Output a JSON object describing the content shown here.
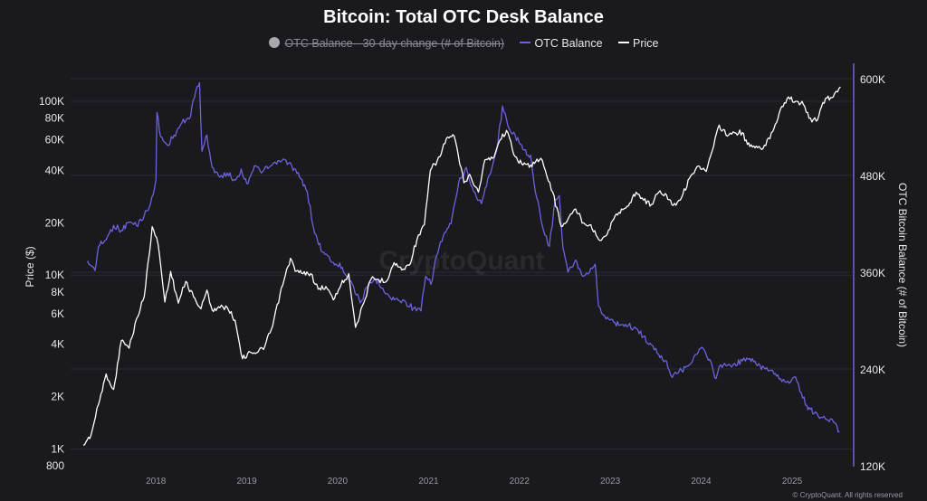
{
  "title": "Bitcoin: Total OTC Desk Balance",
  "legend": {
    "hidden_item": "OTC Balance - 30-day change (# of Bitcoin)",
    "balance_item": "OTC Balance",
    "price_item": "Price"
  },
  "footer": "© CryptoQuant. All rights reserved",
  "watermark": "CryptoQuant",
  "colors": {
    "background": "#1a191e",
    "balance": "#6b63de",
    "price": "#ffffff",
    "grid": "#2b2a31",
    "hidden_dot": "#a9a8b0"
  },
  "chart_data": {
    "type": "line",
    "title": "Bitcoin: Total OTC Desk Balance",
    "x_axis": {
      "type": "time",
      "range": [
        "2017-03-15",
        "2025-07-20"
      ],
      "tick_labels": [
        "2018",
        "2019",
        "2020",
        "2021",
        "2022",
        "2023",
        "2024",
        "2025"
      ]
    },
    "y_left": {
      "label": "Price ($)",
      "scale": "log",
      "range": [
        800,
        135000
      ],
      "tick_labels": [
        "800",
        "1K",
        "2K",
        "4K",
        "6K",
        "8K",
        "10K",
        "20K",
        "40K",
        "60K",
        "80K",
        "100K"
      ],
      "tick_values": [
        800,
        1000,
        2000,
        4000,
        6000,
        8000,
        10000,
        20000,
        40000,
        60000,
        80000,
        100000
      ]
    },
    "y_right": {
      "label": "OTC Bitcoin Balance (# of Bitcoin)",
      "scale": "linear",
      "range": [
        120000,
        600000
      ],
      "tick_labels": [
        "120K",
        "240K",
        "360K",
        "480K",
        "600K"
      ],
      "tick_values": [
        120000,
        240000,
        360000,
        480000,
        600000
      ]
    },
    "grid": true,
    "legend_position": "top-center",
    "series": [
      {
        "name": "OTC Balance - 30-day change (# of Bitcoin)",
        "visible": false
      },
      {
        "name": "OTC Balance",
        "axis": "right",
        "color": "#6b63de",
        "points": [
          [
            "2017-04-01",
            374000
          ],
          [
            "2017-05-01",
            362000
          ],
          [
            "2017-05-15",
            392000
          ],
          [
            "2017-06-15",
            400000
          ],
          [
            "2017-07-15",
            418000
          ],
          [
            "2017-08-15",
            412000
          ],
          [
            "2017-09-15",
            422000
          ],
          [
            "2017-10-15",
            418000
          ],
          [
            "2017-11-15",
            430000
          ],
          [
            "2017-12-10",
            445000
          ],
          [
            "2018-01-01",
            475000
          ],
          [
            "2018-01-05",
            558000
          ],
          [
            "2018-01-20",
            528000
          ],
          [
            "2018-02-15",
            518000
          ],
          [
            "2018-03-15",
            530000
          ],
          [
            "2018-04-15",
            545000
          ],
          [
            "2018-05-15",
            550000
          ],
          [
            "2018-06-15",
            590000
          ],
          [
            "2018-06-25",
            595000
          ],
          [
            "2018-07-05",
            510000
          ],
          [
            "2018-07-25",
            530000
          ],
          [
            "2018-08-15",
            490000
          ],
          [
            "2018-09-15",
            478000
          ],
          [
            "2018-10-15",
            483000
          ],
          [
            "2018-11-15",
            474000
          ],
          [
            "2018-12-10",
            488000
          ],
          [
            "2019-01-01",
            470000
          ],
          [
            "2019-02-01",
            492000
          ],
          [
            "2019-03-01",
            483000
          ],
          [
            "2019-04-01",
            490000
          ],
          [
            "2019-05-01",
            494000
          ],
          [
            "2019-06-01",
            500000
          ],
          [
            "2019-07-01",
            492000
          ],
          [
            "2019-08-01",
            478000
          ],
          [
            "2019-09-01",
            460000
          ],
          [
            "2019-10-01",
            408000
          ],
          [
            "2019-11-01",
            385000
          ],
          [
            "2019-12-15",
            372000
          ],
          [
            "2020-01-20",
            366000
          ],
          [
            "2020-03-01",
            345000
          ],
          [
            "2020-04-01",
            322000
          ],
          [
            "2020-05-01",
            342000
          ],
          [
            "2020-06-01",
            352000
          ],
          [
            "2020-07-01",
            340000
          ],
          [
            "2020-08-01",
            328000
          ],
          [
            "2020-09-01",
            325000
          ],
          [
            "2020-10-01",
            323000
          ],
          [
            "2020-11-01",
            315000
          ],
          [
            "2020-12-01",
            312000
          ],
          [
            "2020-12-20",
            355000
          ],
          [
            "2021-01-10",
            345000
          ],
          [
            "2021-02-01",
            380000
          ],
          [
            "2021-03-01",
            405000
          ],
          [
            "2021-04-01",
            420000
          ],
          [
            "2021-05-01",
            470000
          ],
          [
            "2021-06-01",
            490000
          ],
          [
            "2021-07-01",
            460000
          ],
          [
            "2021-08-01",
            445000
          ],
          [
            "2021-09-01",
            480000
          ],
          [
            "2021-10-01",
            510000
          ],
          [
            "2021-10-25",
            566000
          ],
          [
            "2021-11-15",
            542000
          ],
          [
            "2021-12-15",
            530000
          ],
          [
            "2022-01-15",
            512000
          ],
          [
            "2022-02-15",
            505000
          ],
          [
            "2022-03-01",
            470000
          ],
          [
            "2022-04-01",
            420000
          ],
          [
            "2022-05-01",
            392000
          ],
          [
            "2022-05-25",
            450000
          ],
          [
            "2022-06-10",
            455000
          ],
          [
            "2022-06-25",
            390000
          ],
          [
            "2022-07-15",
            360000
          ],
          [
            "2022-08-15",
            375000
          ],
          [
            "2022-09-15",
            355000
          ],
          [
            "2022-10-15",
            365000
          ],
          [
            "2022-11-01",
            370000
          ],
          [
            "2022-11-15",
            318000
          ],
          [
            "2022-12-15",
            302000
          ],
          [
            "2023-01-15",
            298000
          ],
          [
            "2023-02-15",
            295000
          ],
          [
            "2023-03-15",
            294000
          ],
          [
            "2023-04-15",
            290000
          ],
          [
            "2023-05-15",
            280000
          ],
          [
            "2023-06-15",
            270000
          ],
          [
            "2023-07-15",
            258000
          ],
          [
            "2023-08-15",
            250000
          ],
          [
            "2023-09-01",
            232000
          ],
          [
            "2023-09-20",
            236000
          ],
          [
            "2023-10-15",
            238000
          ],
          [
            "2023-11-15",
            245000
          ],
          [
            "2023-12-15",
            258000
          ],
          [
            "2024-01-05",
            267000
          ],
          [
            "2024-01-25",
            255000
          ],
          [
            "2024-02-15",
            243000
          ],
          [
            "2024-03-01",
            228000
          ],
          [
            "2024-03-20",
            245000
          ],
          [
            "2024-04-15",
            244000
          ],
          [
            "2024-05-15",
            247000
          ],
          [
            "2024-06-15",
            250000
          ],
          [
            "2024-07-15",
            253000
          ],
          [
            "2024-08-15",
            244000
          ],
          [
            "2024-09-15",
            240000
          ],
          [
            "2024-10-15",
            238000
          ],
          [
            "2024-11-15",
            228000
          ],
          [
            "2024-12-15",
            225000
          ],
          [
            "2025-01-15",
            230000
          ],
          [
            "2025-02-01",
            212000
          ],
          [
            "2025-03-01",
            195000
          ],
          [
            "2025-03-15",
            190000
          ],
          [
            "2025-04-15",
            182000
          ],
          [
            "2025-05-15",
            178000
          ],
          [
            "2025-06-15",
            175000
          ],
          [
            "2025-07-10",
            163000
          ]
        ]
      },
      {
        "name": "Price",
        "axis": "left",
        "color": "#ffffff",
        "points": [
          [
            "2017-03-15",
            1050
          ],
          [
            "2017-04-15",
            1200
          ],
          [
            "2017-05-15",
            1800
          ],
          [
            "2017-06-15",
            2700
          ],
          [
            "2017-07-15",
            2200
          ],
          [
            "2017-08-15",
            4200
          ],
          [
            "2017-09-15",
            3800
          ],
          [
            "2017-10-15",
            5600
          ],
          [
            "2017-11-15",
            7500
          ],
          [
            "2017-12-17",
            19000
          ],
          [
            "2018-01-10",
            15000
          ],
          [
            "2018-02-06",
            7000
          ],
          [
            "2018-03-01",
            10500
          ],
          [
            "2018-04-01",
            6900
          ],
          [
            "2018-05-01",
            9200
          ],
          [
            "2018-06-01",
            7500
          ],
          [
            "2018-07-01",
            6400
          ],
          [
            "2018-07-25",
            8200
          ],
          [
            "2018-08-15",
            6300
          ],
          [
            "2018-09-15",
            6500
          ],
          [
            "2018-10-15",
            6500
          ],
          [
            "2018-11-15",
            5500
          ],
          [
            "2018-12-15",
            3300
          ],
          [
            "2019-01-15",
            3600
          ],
          [
            "2019-02-15",
            3600
          ],
          [
            "2019-03-15",
            3900
          ],
          [
            "2019-04-15",
            5100
          ],
          [
            "2019-05-15",
            7800
          ],
          [
            "2019-06-26",
            12500
          ],
          [
            "2019-07-15",
            10500
          ],
          [
            "2019-08-15",
            10200
          ],
          [
            "2019-09-15",
            10200
          ],
          [
            "2019-10-15",
            8300
          ],
          [
            "2019-11-15",
            8600
          ],
          [
            "2019-12-15",
            7200
          ],
          [
            "2020-01-15",
            8800
          ],
          [
            "2020-02-15",
            10200
          ],
          [
            "2020-03-13",
            5000
          ],
          [
            "2020-04-15",
            6900
          ],
          [
            "2020-05-15",
            9500
          ],
          [
            "2020-06-15",
            9400
          ],
          [
            "2020-07-15",
            9200
          ],
          [
            "2020-08-15",
            11800
          ],
          [
            "2020-09-15",
            10700
          ],
          [
            "2020-10-15",
            11400
          ],
          [
            "2020-11-15",
            16000
          ],
          [
            "2020-12-15",
            19500
          ],
          [
            "2021-01-08",
            40000
          ],
          [
            "2021-02-15",
            48000
          ],
          [
            "2021-03-13",
            61000
          ],
          [
            "2021-04-14",
            63000
          ],
          [
            "2021-05-23",
            34000
          ],
          [
            "2021-06-15",
            38000
          ],
          [
            "2021-07-20",
            30000
          ],
          [
            "2021-08-15",
            46000
          ],
          [
            "2021-09-15",
            47000
          ],
          [
            "2021-10-15",
            60000
          ],
          [
            "2021-11-10",
            68000
          ],
          [
            "2021-12-15",
            48000
          ],
          [
            "2022-01-15",
            43000
          ],
          [
            "2022-02-15",
            43000
          ],
          [
            "2022-03-28",
            47000
          ],
          [
            "2022-04-15",
            40000
          ],
          [
            "2022-05-15",
            30000
          ],
          [
            "2022-06-18",
            19000
          ],
          [
            "2022-07-15",
            21000
          ],
          [
            "2022-08-15",
            24000
          ],
          [
            "2022-09-15",
            20000
          ],
          [
            "2022-10-15",
            19500
          ],
          [
            "2022-11-21",
            15800
          ],
          [
            "2022-12-15",
            16800
          ],
          [
            "2023-01-15",
            21000
          ],
          [
            "2023-02-15",
            24000
          ],
          [
            "2023-03-15",
            25000
          ],
          [
            "2023-04-15",
            30000
          ],
          [
            "2023-05-15",
            27000
          ],
          [
            "2023-06-15",
            25500
          ],
          [
            "2023-07-15",
            30000
          ],
          [
            "2023-08-15",
            29000
          ],
          [
            "2023-09-11",
            25200
          ],
          [
            "2023-10-15",
            28000
          ],
          [
            "2023-11-15",
            36000
          ],
          [
            "2023-12-15",
            42000
          ],
          [
            "2024-01-22",
            39500
          ],
          [
            "2024-02-15",
            52000
          ],
          [
            "2024-03-14",
            73000
          ],
          [
            "2024-04-15",
            63000
          ],
          [
            "2024-05-15",
            66000
          ],
          [
            "2024-06-15",
            66000
          ],
          [
            "2024-07-05",
            56500
          ],
          [
            "2024-08-05",
            54000
          ],
          [
            "2024-09-06",
            53500
          ],
          [
            "2024-10-15",
            67000
          ],
          [
            "2024-11-15",
            90000
          ],
          [
            "2024-12-17",
            106000
          ],
          [
            "2025-01-15",
            100000
          ],
          [
            "2025-02-15",
            96000
          ],
          [
            "2025-03-10",
            80000
          ],
          [
            "2025-04-08",
            77000
          ],
          [
            "2025-05-15",
            104000
          ],
          [
            "2025-06-15",
            106000
          ],
          [
            "2025-07-14",
            121000
          ]
        ]
      }
    ]
  }
}
